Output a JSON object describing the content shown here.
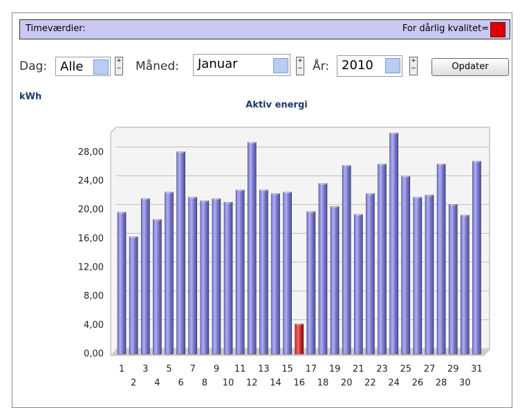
{
  "header": {
    "title": "Timeværdier:",
    "quality_label": "For dårlig kvalitet="
  },
  "controls": {
    "day_label": "Dag:",
    "day_value": "Alle",
    "month_label": "Måned:",
    "month_value": "Januar",
    "year_label": "År:",
    "year_value": "2010",
    "button": "Opdater"
  },
  "chart_data": {
    "type": "bar",
    "title": "Aktiv energi",
    "y_label": "kWh",
    "categories": [
      "1",
      "2",
      "3",
      "4",
      "5",
      "6",
      "7",
      "8",
      "9",
      "10",
      "11",
      "12",
      "13",
      "14",
      "15",
      "16",
      "17",
      "18",
      "19",
      "20",
      "21",
      "22",
      "23",
      "24",
      "25",
      "26",
      "27",
      "28",
      "29",
      "30",
      "31"
    ],
    "values": [
      19.7,
      16.3,
      21.6,
      18.7,
      22.5,
      28.1,
      21.8,
      21.3,
      21.6,
      21.1,
      22.8,
      29.4,
      22.8,
      22.3,
      22.5,
      4.2,
      19.8,
      23.7,
      20.5,
      26.2,
      19.4,
      22.3,
      26.4,
      30.7,
      24.7,
      21.8,
      22.1,
      26.4,
      20.8,
      19.3,
      26.8
    ],
    "bar_colors": [
      "#6f6fe6",
      "#6f6fe6",
      "#6f6fe6",
      "#6f6fe6",
      "#6f6fe6",
      "#6f6fe6",
      "#6f6fe6",
      "#6f6fe6",
      "#6f6fe6",
      "#6f6fe6",
      "#6f6fe6",
      "#6f6fe6",
      "#6f6fe6",
      "#6f6fe6",
      "#6f6fe6",
      "#e00000",
      "#6f6fe6",
      "#6f6fe6",
      "#6f6fe6",
      "#6f6fe6",
      "#6f6fe6",
      "#6f6fe6",
      "#6f6fe6",
      "#6f6fe6",
      "#6f6fe6",
      "#6f6fe6",
      "#6f6fe6",
      "#6f6fe6",
      "#6f6fe6",
      "#6f6fe6",
      "#6f6fe6"
    ],
    "ylim": [
      0,
      31.5
    ],
    "yticks": [
      {
        "value": 0,
        "label": "0,00"
      },
      {
        "value": 4,
        "label": "4,00"
      },
      {
        "value": 8,
        "label": "8,00"
      },
      {
        "value": 12,
        "label": "12,00"
      },
      {
        "value": 16,
        "label": "16,00"
      },
      {
        "value": 20,
        "label": "20,00"
      },
      {
        "value": 24,
        "label": "24,00"
      },
      {
        "value": 28,
        "label": "28,00"
      }
    ],
    "grid": true
  }
}
